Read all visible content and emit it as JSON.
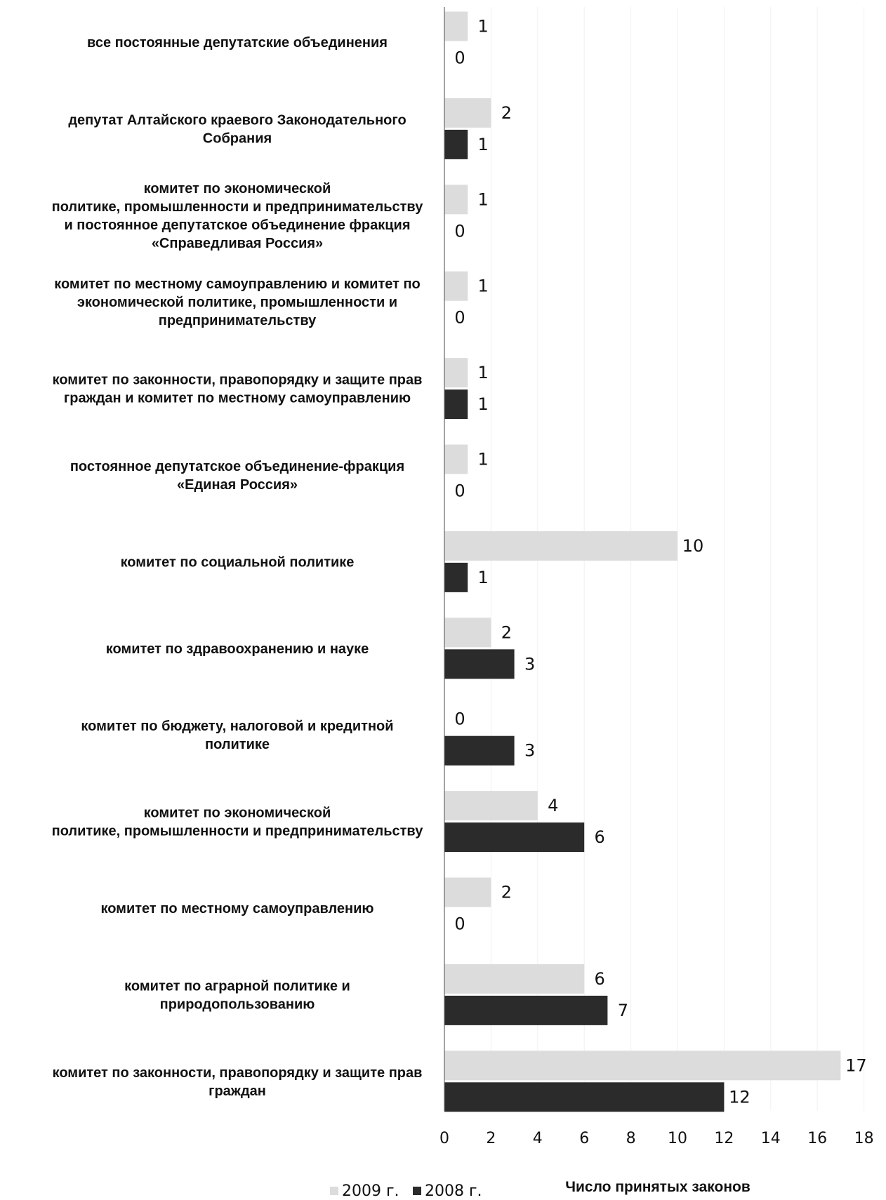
{
  "chart_data": {
    "type": "bar",
    "orientation": "horizontal",
    "xlabel": "Число принятых законов",
    "xlim": [
      0,
      18
    ],
    "xticks": [
      "0",
      "2",
      "4",
      "6",
      "8",
      "10",
      "12",
      "14",
      "16",
      "18"
    ],
    "legend_position": "bottom",
    "categories": [
      [
        "все постоянные депутатские объединения"
      ],
      [
        "депутат Алтайского краевого Законодательного",
        "Собрания"
      ],
      [
        "комитет по экономической",
        "политике, промышленности и предпринимательству",
        "и постоянное депутатское объединение фракция",
        "«Справедливая Россия»"
      ],
      [
        "комитет по местному самоуправлению и комитет по",
        "экономической политике, промышленности и",
        "предпринимательству"
      ],
      [
        "комитет по законности, правопорядку и защите прав",
        "граждан и комитет по местному самоуправлению"
      ],
      [
        "постоянное депутатское объединение-фракция",
        "«Единая Россия»"
      ],
      [
        "комитет по социальной политике"
      ],
      [
        "комитет по здравоохранению и науке"
      ],
      [
        "комитет по бюджету, налоговой и кредитной",
        "политике"
      ],
      [
        "комитет по экономической",
        "политике, промышленности и предпринимательству"
      ],
      [
        "комитет по местному самоуправлению"
      ],
      [
        "комитет по аграрной политике и",
        "природопользованию"
      ],
      [
        "комитет по законности, правопорядку и защите прав",
        "граждан"
      ]
    ],
    "series": [
      {
        "name": "2009 г.",
        "color": "#dcdcdc",
        "values": [
          1,
          2,
          1,
          1,
          1,
          1,
          10,
          2,
          0,
          4,
          2,
          6,
          17
        ]
      },
      {
        "name": "2008 г.",
        "color": "#2b2b2b",
        "values": [
          0,
          1,
          0,
          0,
          1,
          0,
          1,
          3,
          3,
          6,
          0,
          7,
          12
        ]
      }
    ]
  }
}
